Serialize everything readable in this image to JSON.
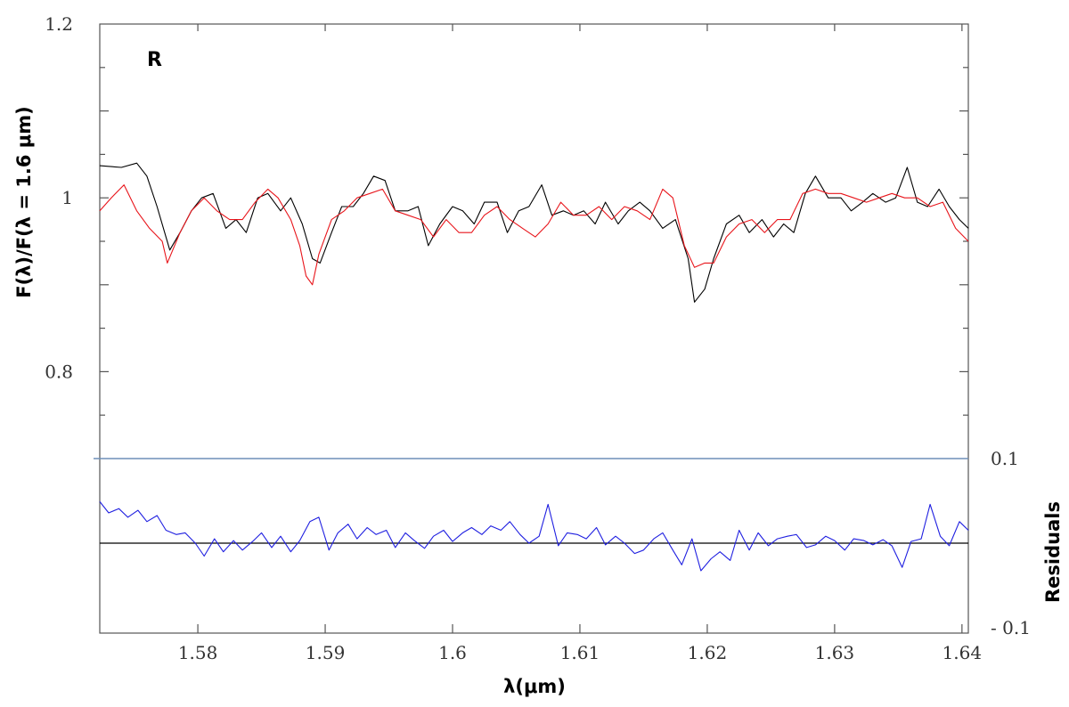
{
  "chart_data": {
    "type": "line",
    "panel_label": "R",
    "xlabel": "λ(μm)",
    "ylabel": "F(λ)/F(λ = 1.6 μm)",
    "residual_label": "Residuals",
    "xlim": [
      1.5723,
      1.6405
    ],
    "ylim": [
      0.7,
      1.2
    ],
    "residual_ylim": [
      -0.15,
      0.15
    ],
    "x_ticks": [
      1.58,
      1.59,
      1.6,
      1.61,
      1.62,
      1.63,
      1.64
    ],
    "x_tick_labels": [
      "1.58",
      "1.59",
      "1.6",
      "1.61",
      "1.62",
      "1.63",
      "1.64"
    ],
    "y_ticks": [
      0.8,
      1.0,
      1.2
    ],
    "y_tick_labels": [
      "0.8",
      "1",
      "1.2"
    ],
    "residual_ticks": [
      0.1,
      -0.1
    ],
    "residual_tick_labels": [
      "0.1",
      "- 0.1"
    ],
    "colors": {
      "observed": "#000000",
      "model": "#e8151b",
      "residual": "#1f1fe0",
      "zero_line": "#000000",
      "separator": "#6f8fb8",
      "frame": "#555555"
    },
    "series": [
      {
        "key": "observed",
        "x": [
          1.5723,
          1.574,
          1.5752,
          1.576,
          1.5768,
          1.5778,
          1.5786,
          1.5795,
          1.5803,
          1.5812,
          1.5822,
          1.583,
          1.5838,
          1.5847,
          1.5855,
          1.5865,
          1.5873,
          1.5882,
          1.589,
          1.5896,
          1.5905,
          1.5913,
          1.5922,
          1.593,
          1.5938,
          1.5947,
          1.5955,
          1.5965,
          1.5973,
          1.5981,
          1.599,
          1.6,
          1.6008,
          1.6017,
          1.6025,
          1.6035,
          1.6043,
          1.6052,
          1.606,
          1.607,
          1.6078,
          1.6087,
          1.6095,
          1.6103,
          1.6112,
          1.612,
          1.613,
          1.6138,
          1.6147,
          1.6155,
          1.6165,
          1.6175,
          1.6185,
          1.619,
          1.6198,
          1.6205,
          1.6215,
          1.6225,
          1.6233,
          1.6243,
          1.6252,
          1.626,
          1.6268,
          1.6277,
          1.6285,
          1.6295,
          1.6305,
          1.6313,
          1.6322,
          1.633,
          1.634,
          1.6348,
          1.6357,
          1.6365,
          1.6373,
          1.6382,
          1.639,
          1.6398,
          1.6405
        ],
        "y": [
          1.037,
          1.035,
          1.04,
          1.025,
          0.99,
          0.94,
          0.96,
          0.985,
          1.0,
          1.005,
          0.965,
          0.975,
          0.96,
          1.0,
          1.005,
          0.985,
          1.0,
          0.97,
          0.93,
          0.925,
          0.96,
          0.99,
          0.99,
          1.005,
          1.025,
          1.02,
          0.985,
          0.985,
          0.99,
          0.945,
          0.97,
          0.99,
          0.985,
          0.97,
          0.995,
          0.995,
          0.96,
          0.985,
          0.99,
          1.015,
          0.98,
          0.985,
          0.98,
          0.985,
          0.97,
          0.995,
          0.97,
          0.985,
          0.995,
          0.985,
          0.965,
          0.975,
          0.93,
          0.88,
          0.895,
          0.93,
          0.97,
          0.98,
          0.96,
          0.975,
          0.955,
          0.97,
          0.96,
          1.005,
          1.025,
          1.0,
          1.0,
          0.985,
          0.995,
          1.005,
          0.995,
          1.0,
          1.035,
          0.995,
          0.99,
          1.01,
          0.99,
          0.975,
          0.965
        ]
      },
      {
        "key": "model",
        "x": [
          1.5723,
          1.5732,
          1.5742,
          1.5752,
          1.5762,
          1.5772,
          1.5776,
          1.5786,
          1.5795,
          1.5805,
          1.5815,
          1.5825,
          1.5835,
          1.5845,
          1.5855,
          1.5863,
          1.5873,
          1.588,
          1.5885,
          1.589,
          1.5895,
          1.5905,
          1.5915,
          1.5925,
          1.5935,
          1.5945,
          1.5955,
          1.5965,
          1.5975,
          1.5985,
          1.5995,
          1.6005,
          1.6015,
          1.6025,
          1.6035,
          1.6045,
          1.6055,
          1.6065,
          1.6075,
          1.6085,
          1.6095,
          1.6105,
          1.6115,
          1.6125,
          1.6135,
          1.6145,
          1.6155,
          1.6165,
          1.6173,
          1.6182,
          1.619,
          1.6198,
          1.6205,
          1.6215,
          1.6225,
          1.6235,
          1.6245,
          1.6255,
          1.6265,
          1.6275,
          1.6285,
          1.6295,
          1.6305,
          1.6315,
          1.6325,
          1.6335,
          1.6345,
          1.6355,
          1.6365,
          1.6375,
          1.6385,
          1.6395,
          1.6405
        ],
        "y": [
          0.985,
          1.0,
          1.015,
          0.985,
          0.965,
          0.95,
          0.925,
          0.96,
          0.985,
          1.0,
          0.985,
          0.975,
          0.975,
          0.995,
          1.01,
          1.0,
          0.975,
          0.945,
          0.91,
          0.9,
          0.935,
          0.975,
          0.985,
          1.0,
          1.005,
          1.01,
          0.985,
          0.98,
          0.975,
          0.955,
          0.975,
          0.96,
          0.96,
          0.98,
          0.99,
          0.975,
          0.965,
          0.955,
          0.97,
          0.995,
          0.98,
          0.98,
          0.99,
          0.975,
          0.99,
          0.985,
          0.975,
          1.01,
          1.0,
          0.945,
          0.92,
          0.925,
          0.925,
          0.955,
          0.97,
          0.975,
          0.96,
          0.975,
          0.975,
          1.005,
          1.01,
          1.005,
          1.005,
          1.0,
          0.995,
          1.0,
          1.005,
          1.0,
          1.0,
          0.99,
          0.995,
          0.965,
          0.95
        ]
      },
      {
        "key": "residual",
        "x": [
          1.5723,
          1.573,
          1.5738,
          1.5745,
          1.5753,
          1.576,
          1.5768,
          1.5775,
          1.5783,
          1.579,
          1.5798,
          1.5805,
          1.5813,
          1.582,
          1.5828,
          1.5835,
          1.5843,
          1.585,
          1.5858,
          1.5865,
          1.5873,
          1.588,
          1.5888,
          1.5895,
          1.5903,
          1.591,
          1.5918,
          1.5925,
          1.5933,
          1.594,
          1.5948,
          1.5955,
          1.5963,
          1.597,
          1.5978,
          1.5985,
          1.5993,
          1.6,
          1.6008,
          1.6015,
          1.6023,
          1.603,
          1.6038,
          1.6045,
          1.6053,
          1.606,
          1.6068,
          1.6075,
          1.6083,
          1.609,
          1.6098,
          1.6105,
          1.6113,
          1.612,
          1.6128,
          1.6135,
          1.6143,
          1.615,
          1.6158,
          1.6165,
          1.6173,
          1.618,
          1.6188,
          1.6195,
          1.6203,
          1.621,
          1.6218,
          1.6225,
          1.6233,
          1.624,
          1.6248,
          1.6255,
          1.6263,
          1.627,
          1.6278,
          1.6285,
          1.6293,
          1.63,
          1.6308,
          1.6315,
          1.6323,
          1.633,
          1.6338,
          1.6345,
          1.6353,
          1.636,
          1.6368,
          1.6375,
          1.6383,
          1.639,
          1.6398,
          1.6405
        ],
        "y": [
          0.048,
          0.035,
          0.04,
          0.03,
          0.038,
          0.025,
          0.032,
          0.015,
          0.01,
          0.012,
          0.0,
          -0.015,
          0.005,
          -0.01,
          0.003,
          -0.008,
          0.002,
          0.012,
          -0.005,
          0.008,
          -0.01,
          0.003,
          0.025,
          0.03,
          -0.008,
          0.012,
          0.022,
          0.005,
          0.018,
          0.01,
          0.015,
          -0.005,
          0.012,
          0.003,
          -0.006,
          0.008,
          0.015,
          0.002,
          0.012,
          0.018,
          0.01,
          0.02,
          0.015,
          0.025,
          0.01,
          0.0,
          0.008,
          0.045,
          -0.003,
          0.012,
          0.01,
          0.005,
          0.018,
          -0.002,
          0.008,
          0.0,
          -0.012,
          -0.008,
          0.005,
          0.012,
          -0.008,
          -0.025,
          0.005,
          -0.032,
          -0.018,
          -0.01,
          -0.02,
          0.015,
          -0.008,
          0.012,
          -0.003,
          0.005,
          0.008,
          0.01,
          -0.005,
          -0.002,
          0.008,
          0.003,
          -0.008,
          0.005,
          0.003,
          -0.002,
          0.004,
          -0.003,
          -0.028,
          0.002,
          0.005,
          0.045,
          0.008,
          -0.003,
          0.025,
          0.015
        ]
      }
    ]
  }
}
